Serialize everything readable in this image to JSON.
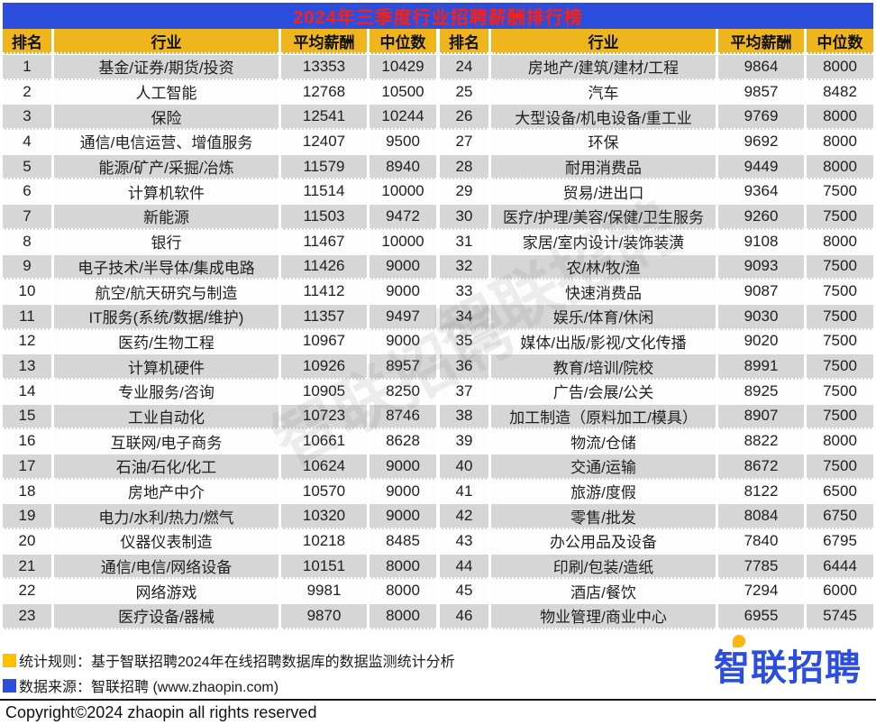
{
  "chart_data": {
    "type": "table",
    "title": "2024年三季度行业招聘薪酬排行榜",
    "columns": [
      "排名",
      "行业",
      "平均薪酬",
      "中位数"
    ],
    "rows_left": [
      [
        1,
        "基金/证券/期货/投资",
        13353,
        10429
      ],
      [
        2,
        "人工智能",
        12768,
        10500
      ],
      [
        3,
        "保险",
        12541,
        10244
      ],
      [
        4,
        "通信/电信运营、增值服务",
        12407,
        9500
      ],
      [
        5,
        "能源/矿产/采掘/冶炼",
        11579,
        8940
      ],
      [
        6,
        "计算机软件",
        11514,
        10000
      ],
      [
        7,
        "新能源",
        11503,
        9472
      ],
      [
        8,
        "银行",
        11467,
        10000
      ],
      [
        9,
        "电子技术/半导体/集成电路",
        11426,
        9000
      ],
      [
        10,
        "航空/航天研究与制造",
        11412,
        9000
      ],
      [
        11,
        "IT服务(系统/数据/维护)",
        11357,
        9497
      ],
      [
        12,
        "医药/生物工程",
        10967,
        9000
      ],
      [
        13,
        "计算机硬件",
        10926,
        8957
      ],
      [
        14,
        "专业服务/咨询",
        10905,
        8250
      ],
      [
        15,
        "工业自动化",
        10723,
        8746
      ],
      [
        16,
        "互联网/电子商务",
        10661,
        8628
      ],
      [
        17,
        "石油/石化/化工",
        10624,
        9000
      ],
      [
        18,
        "房地产中介",
        10570,
        9000
      ],
      [
        19,
        "电力/水利/热力/燃气",
        10320,
        9000
      ],
      [
        20,
        "仪器仪表制造",
        10218,
        8485
      ],
      [
        21,
        "通信/电信/网络设备",
        10151,
        8000
      ],
      [
        22,
        "网络游戏",
        9981,
        8000
      ],
      [
        23,
        "医疗设备/器械",
        9870,
        8000
      ]
    ],
    "rows_right": [
      [
        24,
        "房地产/建筑/建材/工程",
        9864,
        8000
      ],
      [
        25,
        "汽车",
        9857,
        8482
      ],
      [
        26,
        "大型设备/机电设备/重工业",
        9769,
        8000
      ],
      [
        27,
        "环保",
        9692,
        8000
      ],
      [
        28,
        "耐用消费品",
        9449,
        8000
      ],
      [
        29,
        "贸易/进出口",
        9364,
        7500
      ],
      [
        30,
        "医疗/护理/美容/保健/卫生服务",
        9260,
        7500
      ],
      [
        31,
        "家居/室内设计/装饰装潢",
        9108,
        8000
      ],
      [
        32,
        "农/林/牧/渔",
        9093,
        7500
      ],
      [
        33,
        "快速消费品",
        9087,
        7500
      ],
      [
        34,
        "娱乐/体育/休闲",
        9030,
        7500
      ],
      [
        35,
        "媒体/出版/影视/文化传播",
        9020,
        7500
      ],
      [
        36,
        "教育/培训/院校",
        8991,
        7500
      ],
      [
        37,
        "广告/会展/公关",
        8925,
        7500
      ],
      [
        38,
        "加工制造（原料加工/模具）",
        8907,
        7500
      ],
      [
        39,
        "物流/仓储",
        8822,
        8000
      ],
      [
        40,
        "交通/运输",
        8672,
        7500
      ],
      [
        41,
        "旅游/度假",
        8122,
        6500
      ],
      [
        42,
        "零售/批发",
        8084,
        6750
      ],
      [
        43,
        "办公用品及设备",
        7840,
        6795
      ],
      [
        44,
        "印刷/包装/造纸",
        7785,
        6444
      ],
      [
        45,
        "酒店/餐饮",
        7294,
        6000
      ],
      [
        46,
        "物业管理/商业中心",
        6955,
        5745
      ]
    ],
    "layout_hints": {
      "two_column_split": true,
      "alternating_row_shading": true,
      "watermark": "智联招聘"
    }
  },
  "watermark_text": "智联招聘",
  "footer": {
    "stat_rule": "统计规则：基于智联招聘2024年在线招聘数据库的数据监测统计分析",
    "data_source": "数据来源：智联招聘 (www.zhaopin.com)",
    "copyright": "Copyright©2024 zhaopin all rights reserved",
    "logo_text": "智联招聘",
    "logo_first_char": "智",
    "logo_rest": "联招聘"
  },
  "colors": {
    "title_bar_bg": "#2B4EDF",
    "title_text": "#FF1F0F",
    "header_bg": "#EFB51D",
    "row_alt_bg": "#D6D6D6",
    "legend_yellow": "#FFC000",
    "legend_blue": "#2B4EDF",
    "logo_blue": "#2B4EDF",
    "logo_dot_yellow": "#FFB612"
  }
}
